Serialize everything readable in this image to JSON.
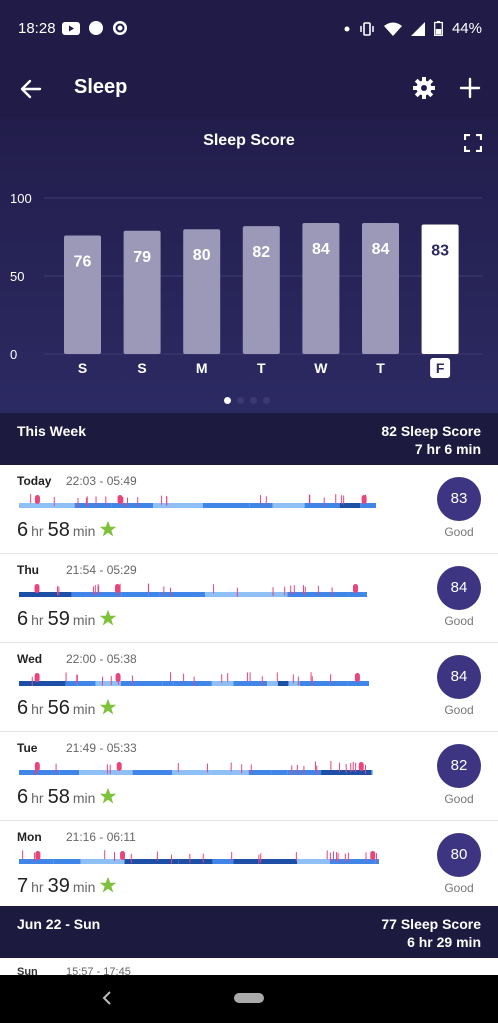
{
  "status": {
    "time": "18:28",
    "battery": "44%",
    "icons": [
      "youtube-icon",
      "circle-icon",
      "sync-icon",
      "dot-icon",
      "vibrate-icon",
      "wifi-icon",
      "signal-icon",
      "battery-icon"
    ]
  },
  "appbar": {
    "title": "Sleep"
  },
  "hero": {
    "title": "Sleep Score"
  },
  "chart_data": {
    "type": "bar",
    "categories": [
      "S",
      "S",
      "M",
      "T",
      "W",
      "T",
      "F"
    ],
    "values": [
      76,
      79,
      80,
      82,
      84,
      84,
      83
    ],
    "highlight_index": 6,
    "ylim": [
      0,
      100
    ],
    "yticks": [
      0,
      50,
      100
    ],
    "grid": true,
    "colors": {
      "bar": "#9c98b8",
      "highlight": "#ffffff",
      "label_on_bar": "#ffffff",
      "label_on_highlight": "#2c2a5f"
    }
  },
  "week": {
    "label": "This Week",
    "score": "82 Sleep Score",
    "duration": "7 hr 6 min"
  },
  "nights": [
    {
      "day": "Today",
      "range": "22:03 - 05:49",
      "hr": "6",
      "min": "58",
      "score": "83",
      "grade": "Good"
    },
    {
      "day": "Thu",
      "range": "21:54 - 05:29",
      "hr": "6",
      "min": "59",
      "score": "84",
      "grade": "Good"
    },
    {
      "day": "Wed",
      "range": "22:00 - 05:38",
      "hr": "6",
      "min": "56",
      "score": "84",
      "grade": "Good"
    },
    {
      "day": "Tue",
      "range": "21:49 - 05:33",
      "hr": "6",
      "min": "58",
      "score": "82",
      "grade": "Good"
    },
    {
      "day": "Mon",
      "range": "21:16 - 06:11",
      "hr": "7",
      "min": "39",
      "score": "80",
      "grade": "Good"
    }
  ],
  "units": {
    "hr": "hr",
    "min": "min"
  },
  "prev_week": {
    "label": "Jun 22 - Sun",
    "score": "77 Sleep Score",
    "duration": "6 hr 29 min"
  },
  "peek": {
    "day": "Sun",
    "range": "15:57 - 17:45"
  },
  "colors": {
    "header": "#201c47",
    "score_circle": "#3e3582",
    "star": "#7ec13b",
    "awake": "#e8457c",
    "deep": "#1e4fa7",
    "light": "#3f86e8",
    "rem": "#8ec0f5"
  }
}
